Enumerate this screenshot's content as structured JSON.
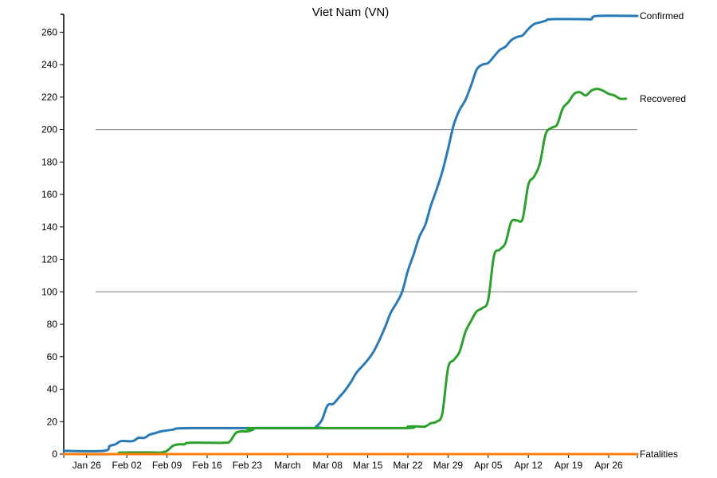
{
  "chart_data": {
    "type": "line",
    "title": "Viet Nam (VN)",
    "xlabel": "",
    "ylabel": "",
    "ylim": [
      0,
      270
    ],
    "y_ticks": [
      0,
      20,
      40,
      60,
      80,
      100,
      120,
      140,
      160,
      180,
      200,
      220,
      240,
      260
    ],
    "x_range": [
      "2020-01-22",
      "2020-05-01"
    ],
    "x_ticks": [
      {
        "date": "2020-01-26",
        "label": "Jan 26"
      },
      {
        "date": "2020-02-02",
        "label": "Feb 02"
      },
      {
        "date": "2020-02-09",
        "label": "Feb 09"
      },
      {
        "date": "2020-02-16",
        "label": "Feb 16"
      },
      {
        "date": "2020-02-23",
        "label": "Feb 23"
      },
      {
        "date": "2020-03-01",
        "label": "March"
      },
      {
        "date": "2020-03-08",
        "label": "Mar 08"
      },
      {
        "date": "2020-03-15",
        "label": "Mar 15"
      },
      {
        "date": "2020-03-22",
        "label": "Mar 22"
      },
      {
        "date": "2020-03-29",
        "label": "Mar 29"
      },
      {
        "date": "2020-04-05",
        "label": "Apr 05"
      },
      {
        "date": "2020-04-12",
        "label": "Apr 12"
      },
      {
        "date": "2020-04-19",
        "label": "Apr 19"
      },
      {
        "date": "2020-04-26",
        "label": "Apr 26"
      }
    ],
    "grid": "horizontal lines at 100 and 200",
    "series": [
      {
        "name": "Confirmed",
        "color": "#2a7ab8",
        "points": [
          [
            "2020-01-22",
            2
          ],
          [
            "2020-01-29",
            2
          ],
          [
            "2020-01-30",
            5
          ],
          [
            "2020-01-31",
            6
          ],
          [
            "2020-02-01",
            8
          ],
          [
            "2020-02-03",
            8
          ],
          [
            "2020-02-04",
            10
          ],
          [
            "2020-02-05",
            10
          ],
          [
            "2020-02-06",
            12
          ],
          [
            "2020-02-07",
            13
          ],
          [
            "2020-02-08",
            14
          ],
          [
            "2020-02-10",
            15
          ],
          [
            "2020-02-13",
            16
          ],
          [
            "2020-03-05",
            16
          ],
          [
            "2020-03-06",
            17
          ],
          [
            "2020-03-07",
            21
          ],
          [
            "2020-03-08",
            30
          ],
          [
            "2020-03-09",
            31
          ],
          [
            "2020-03-10",
            35
          ],
          [
            "2020-03-11",
            39
          ],
          [
            "2020-03-12",
            44
          ],
          [
            "2020-03-13",
            50
          ],
          [
            "2020-03-14",
            54
          ],
          [
            "2020-03-15",
            58
          ],
          [
            "2020-03-16",
            63
          ],
          [
            "2020-03-17",
            70
          ],
          [
            "2020-03-18",
            78
          ],
          [
            "2020-03-19",
            87
          ],
          [
            "2020-03-20",
            93
          ],
          [
            "2020-03-21",
            100
          ],
          [
            "2020-03-22",
            113
          ],
          [
            "2020-03-23",
            123
          ],
          [
            "2020-03-24",
            134
          ],
          [
            "2020-03-25",
            141
          ],
          [
            "2020-03-26",
            153
          ],
          [
            "2020-03-27",
            163
          ],
          [
            "2020-03-28",
            174
          ],
          [
            "2020-03-29",
            188
          ],
          [
            "2020-03-30",
            203
          ],
          [
            "2020-03-31",
            212
          ],
          [
            "2020-04-01",
            218
          ],
          [
            "2020-04-02",
            227
          ],
          [
            "2020-04-03",
            237
          ],
          [
            "2020-04-04",
            240
          ],
          [
            "2020-04-05",
            241
          ],
          [
            "2020-04-06",
            245
          ],
          [
            "2020-04-07",
            249
          ],
          [
            "2020-04-08",
            251
          ],
          [
            "2020-04-09",
            255
          ],
          [
            "2020-04-10",
            257
          ],
          [
            "2020-04-11",
            258
          ],
          [
            "2020-04-12",
            262
          ],
          [
            "2020-04-13",
            265
          ],
          [
            "2020-04-14",
            266
          ],
          [
            "2020-04-15",
            267
          ],
          [
            "2020-04-16",
            268
          ],
          [
            "2020-04-22",
            268
          ],
          [
            "2020-04-23",
            268
          ],
          [
            "2020-04-24",
            270
          ],
          [
            "2020-05-01",
            270
          ]
        ]
      },
      {
        "name": "Recovered",
        "color": "#2ca02c",
        "points": [
          [
            "2020-01-22",
            0
          ],
          [
            "2020-01-31",
            0
          ],
          [
            "2020-02-01",
            1
          ],
          [
            "2020-02-07",
            1
          ],
          [
            "2020-02-08",
            1
          ],
          [
            "2020-02-09",
            2
          ],
          [
            "2020-02-10",
            5
          ],
          [
            "2020-02-11",
            6
          ],
          [
            "2020-02-12",
            6
          ],
          [
            "2020-02-13",
            7
          ],
          [
            "2020-02-19",
            7
          ],
          [
            "2020-02-20",
            8
          ],
          [
            "2020-02-21",
            13
          ],
          [
            "2020-02-22",
            14
          ],
          [
            "2020-02-23",
            14
          ],
          [
            "2020-02-24",
            15
          ],
          [
            "2020-02-25",
            16
          ],
          [
            "2020-03-21",
            16
          ],
          [
            "2020-03-22",
            17
          ],
          [
            "2020-03-24",
            17
          ],
          [
            "2020-03-25",
            17
          ],
          [
            "2020-03-26",
            19
          ],
          [
            "2020-03-27",
            20
          ],
          [
            "2020-03-28",
            25
          ],
          [
            "2020-03-29",
            53
          ],
          [
            "2020-03-30",
            58
          ],
          [
            "2020-03-31",
            63
          ],
          [
            "2020-04-01",
            75
          ],
          [
            "2020-04-02",
            82
          ],
          [
            "2020-04-03",
            88
          ],
          [
            "2020-04-04",
            90
          ],
          [
            "2020-04-05",
            95
          ],
          [
            "2020-04-06",
            122
          ],
          [
            "2020-04-07",
            126
          ],
          [
            "2020-04-08",
            130
          ],
          [
            "2020-04-09",
            143
          ],
          [
            "2020-04-10",
            144
          ],
          [
            "2020-04-11",
            145
          ],
          [
            "2020-04-12",
            166
          ],
          [
            "2020-04-13",
            171
          ],
          [
            "2020-04-14",
            179
          ],
          [
            "2020-04-15",
            197
          ],
          [
            "2020-04-16",
            201
          ],
          [
            "2020-04-17",
            203
          ],
          [
            "2020-04-18",
            213
          ],
          [
            "2020-04-19",
            217
          ],
          [
            "2020-04-20",
            222
          ],
          [
            "2020-04-21",
            223
          ],
          [
            "2020-04-22",
            221
          ],
          [
            "2020-04-23",
            224
          ],
          [
            "2020-04-24",
            225
          ],
          [
            "2020-04-25",
            224
          ],
          [
            "2020-04-26",
            222
          ],
          [
            "2020-04-27",
            221
          ],
          [
            "2020-04-28",
            219
          ],
          [
            "2020-04-29",
            219
          ]
        ]
      },
      {
        "name": "Fatalities",
        "color": "#ff7f0e",
        "points": [
          [
            "2020-01-22",
            0
          ],
          [
            "2020-05-01",
            0
          ]
        ]
      }
    ]
  }
}
